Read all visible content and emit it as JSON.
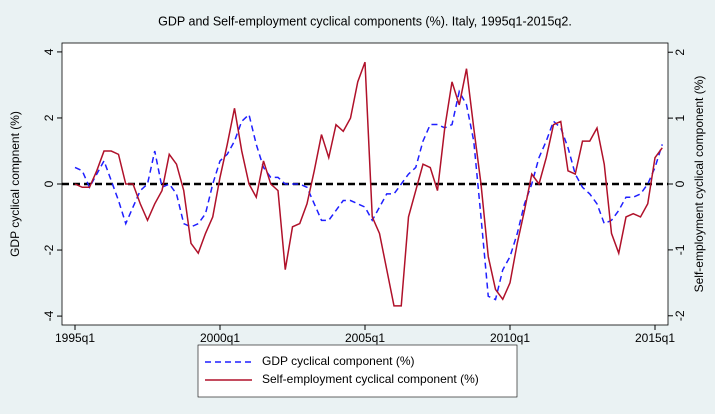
{
  "chart_data": {
    "type": "line",
    "title": "GDP and Self-employment cyclical components (%). Italy, 1995q1-2015q2.",
    "y_label": "GDP cyclical compnent (%)",
    "y2_label": "Self-employment cyclical component (%)",
    "categories": [
      "1995q1",
      null,
      null,
      null,
      null,
      null,
      null,
      null,
      null,
      null,
      null,
      null,
      null,
      null,
      null,
      null,
      null,
      null,
      null,
      null,
      "2000q1",
      null,
      null,
      null,
      null,
      null,
      null,
      null,
      null,
      null,
      null,
      null,
      null,
      null,
      null,
      null,
      null,
      null,
      null,
      null,
      "2005q1",
      null,
      null,
      null,
      null,
      null,
      null,
      null,
      null,
      null,
      null,
      null,
      null,
      null,
      null,
      null,
      null,
      null,
      null,
      null,
      "2010q1",
      null,
      null,
      null,
      null,
      null,
      null,
      null,
      null,
      null,
      null,
      null,
      null,
      null,
      null,
      null,
      null,
      null,
      null,
      null,
      "2015q1",
      null
    ],
    "ylim": [
      -4.27,
      4.27
    ],
    "yticks": [
      -4,
      -2,
      0,
      2,
      4
    ],
    "y2lim": [
      -2.14,
      2.14
    ],
    "y2ticks": [
      -2,
      -1,
      0,
      1,
      2
    ],
    "reference_line": 0,
    "series": [
      {
        "name": "GDP cyclical component (%)",
        "color": "#1f1fff",
        "dashed": true,
        "values": [
          0.5,
          0.4,
          -0.1,
          0.3,
          0.7,
          0.1,
          -0.5,
          -1.2,
          -0.7,
          -0.2,
          0.0,
          1.0,
          -0.1,
          0.0,
          -0.3,
          -1.2,
          -1.3,
          -1.2,
          -0.9,
          0.0,
          0.7,
          0.9,
          1.3,
          1.9,
          2.1,
          1.2,
          0.5,
          0.2,
          0.2,
          0.0,
          0.0,
          0.0,
          -0.1,
          -0.6,
          -1.1,
          -1.1,
          -0.8,
          -0.5,
          -0.5,
          -0.6,
          -0.7,
          -1.1,
          -0.7,
          -0.3,
          -0.3,
          0.0,
          0.3,
          0.5,
          1.3,
          1.8,
          1.8,
          1.7,
          1.8,
          2.8,
          2.4,
          1.3,
          -1.0,
          -3.4,
          -3.5,
          -2.6,
          -2.2,
          -1.5,
          -0.6,
          0.0,
          0.8,
          1.3,
          1.9,
          1.7,
          1.1,
          0.3,
          -0.1,
          -0.3,
          -0.6,
          -1.2,
          -1.1,
          -0.8,
          -0.4,
          -0.4,
          -0.3,
          0.0,
          0.5,
          1.2
        ]
      },
      {
        "name": "Self-employment cyclical component (%)",
        "color": "#b0112a",
        "dashed": false,
        "axis": "y2",
        "values": [
          0.0,
          -0.05,
          -0.05,
          0.2,
          0.5,
          0.5,
          0.45,
          0.0,
          0.0,
          -0.3,
          -0.55,
          -0.3,
          -0.1,
          0.45,
          0.3,
          -0.1,
          -0.9,
          -1.05,
          -0.75,
          -0.5,
          0.1,
          0.6,
          1.15,
          0.5,
          0.0,
          -0.2,
          0.35,
          0.0,
          -0.1,
          -1.3,
          -0.65,
          -0.6,
          -0.3,
          0.2,
          0.75,
          0.4,
          0.9,
          0.8,
          1.0,
          1.55,
          1.85,
          -0.5,
          -0.75,
          -1.3,
          -1.85,
          -1.85,
          -0.5,
          -0.1,
          0.3,
          0.25,
          -0.1,
          0.85,
          1.55,
          1.2,
          1.75,
          0.85,
          0.0,
          -1.1,
          -1.6,
          -1.75,
          -1.5,
          -0.9,
          -0.4,
          0.15,
          0.0,
          0.4,
          0.9,
          0.95,
          0.2,
          0.15,
          0.65,
          0.65,
          0.85,
          0.3,
          -0.75,
          -1.05,
          -0.5,
          -0.45,
          -0.5,
          -0.3,
          0.4,
          0.55
        ]
      }
    ]
  }
}
